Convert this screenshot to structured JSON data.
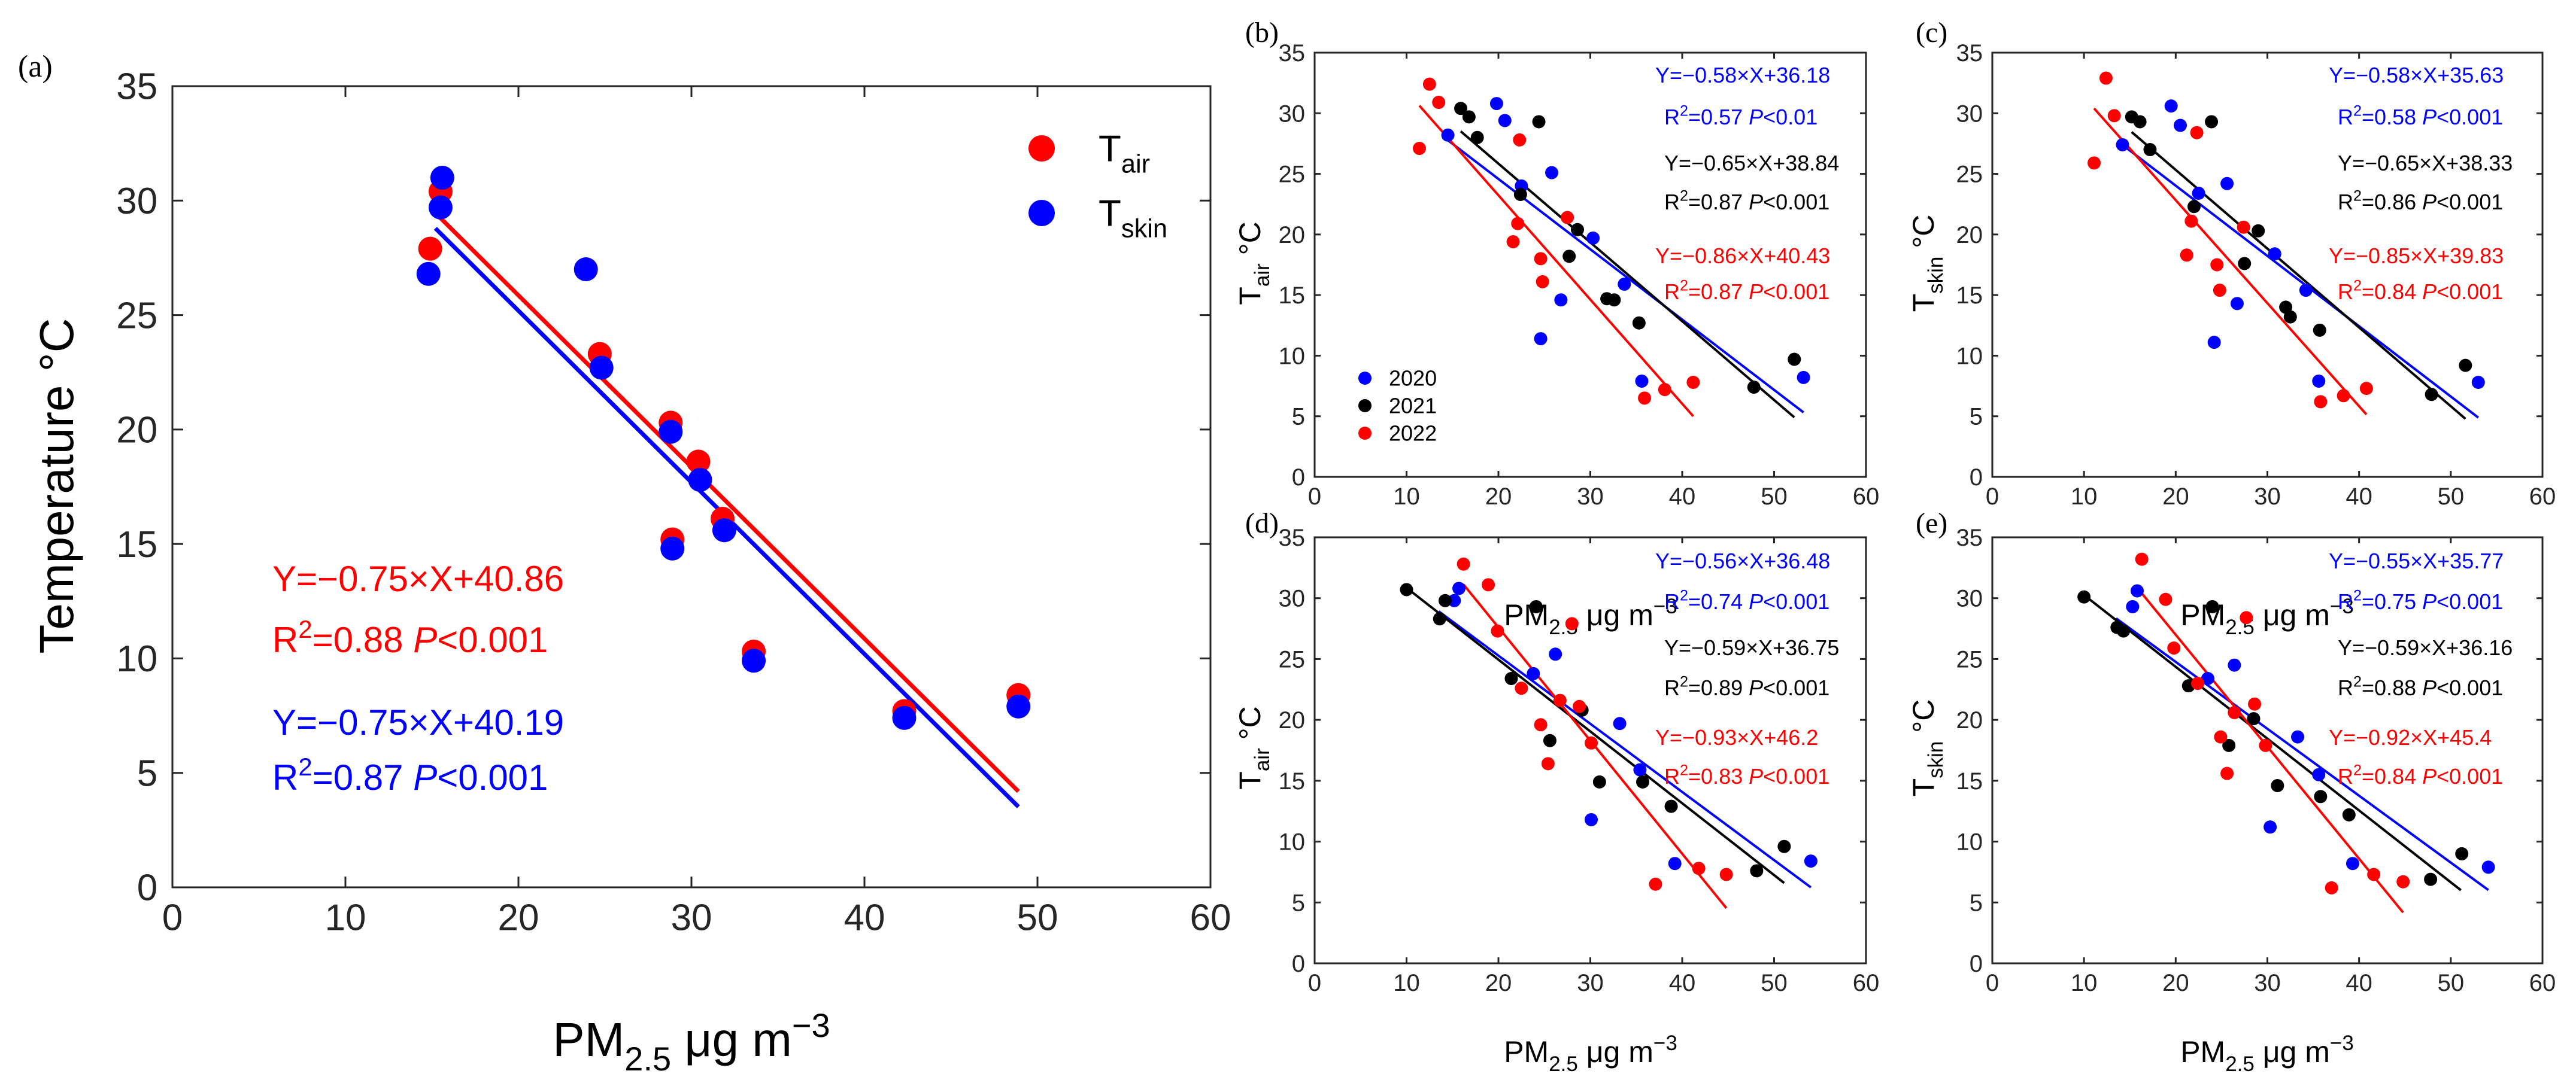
{
  "figure": {
    "colors": {
      "red": "#ff0000",
      "blue": "#0000ff",
      "black": "#000000"
    }
  },
  "chart_data": [
    {
      "panel": "(a)",
      "type": "scatter",
      "xlabel": {
        "main": "PM",
        "sub": "2.5",
        "unit": " μg m",
        "sup": "−3"
      },
      "ylabel": "Temperature °C",
      "xlim": [
        0,
        60
      ],
      "ylim": [
        0,
        35
      ],
      "xticks": [
        "0",
        "10",
        "20",
        "30",
        "40",
        "50",
        "60"
      ],
      "yticks": [
        "0",
        "5",
        "10",
        "15",
        "20",
        "25",
        "30",
        "35"
      ],
      "legend": [
        {
          "main": "T",
          "sub": "air",
          "color": "#ff0000"
        },
        {
          "main": "T",
          "sub": "skin",
          "color": "#0000ff"
        }
      ],
      "series": [
        {
          "name": "T_air",
          "color": "#ff0000",
          "x": [
            14.9,
            15.5,
            24.7,
            28.8,
            28.9,
            30.4,
            31.8,
            33.6,
            42.3,
            48.9
          ],
          "y": [
            27.9,
            30.4,
            23.3,
            20.3,
            15.2,
            18.6,
            16.1,
            10.3,
            7.7,
            8.4
          ]
        },
        {
          "name": "T_skin",
          "color": "#0000ff",
          "x": [
            14.8,
            15.5,
            15.6,
            23.9,
            24.8,
            28.8,
            28.9,
            30.5,
            31.9,
            33.6,
            42.3,
            48.9
          ],
          "y": [
            26.8,
            29.7,
            31.0,
            27.0,
            22.7,
            19.9,
            14.8,
            17.8,
            15.6,
            9.9,
            7.4,
            7.9
          ]
        }
      ],
      "fits": [
        {
          "color": "#ff0000",
          "x": [
            15.2,
            48.9
          ],
          "y": [
            29.46,
            4.19
          ],
          "eq": "Y=−0.75×X+40.86",
          "r2": "0.88",
          "p": "<0.001"
        },
        {
          "color": "#0000ff",
          "x": [
            15.2,
            48.9
          ],
          "y": [
            28.79,
            3.52
          ],
          "eq": "Y=−0.75×X+40.19",
          "r2": "0.87",
          "p": "<0.001"
        }
      ],
      "annotations": [
        {
          "kind": "eq",
          "text": "Y=−0.75×X+40.86",
          "color": "#ff0000"
        },
        {
          "kind": "r2p",
          "r2": "0.88",
          "p": "<0.001",
          "color": "#ff0000"
        },
        {
          "kind": "eq",
          "text": "Y=−0.75×X+40.19",
          "color": "#0000ff"
        },
        {
          "kind": "r2p",
          "r2": "0.87",
          "p": "<0.001",
          "color": "#0000ff"
        }
      ]
    },
    {
      "panel": "(b)",
      "type": "scatter",
      "xlabel": {
        "main": "PM",
        "sub": "2.5",
        "unit": " μg m",
        "sup": "−3"
      },
      "ylabel": {
        "main": "T",
        "sub": "air",
        "unit": " °C"
      },
      "xlim": [
        0,
        60
      ],
      "ylim": [
        0,
        35
      ],
      "xticks": [
        "0",
        "10",
        "20",
        "30",
        "40",
        "50",
        "60"
      ],
      "yticks": [
        "0",
        "5",
        "10",
        "15",
        "20",
        "25",
        "30",
        "35"
      ],
      "legend": [
        {
          "label": "2020",
          "color": "#0000ff"
        },
        {
          "label": "2021",
          "color": "#000000"
        },
        {
          "label": "2022",
          "color": "#ff0000"
        }
      ],
      "series": [
        {
          "name": "2020",
          "color": "#0000ff",
          "x": [
            14.5,
            19.8,
            20.7,
            22.5,
            24.6,
            25.8,
            26.8,
            30.3,
            33.7,
            35.6,
            53.2
          ],
          "y": [
            28.2,
            30.8,
            29.4,
            24.0,
            11.4,
            25.1,
            14.6,
            19.7,
            15.9,
            7.9,
            8.2
          ]
        },
        {
          "name": "2021",
          "color": "#000000",
          "x": [
            15.9,
            16.8,
            17.7,
            22.4,
            24.4,
            27.7,
            28.6,
            31.8,
            32.6,
            35.3,
            47.8,
            52.2
          ],
          "y": [
            30.4,
            29.7,
            28.0,
            23.3,
            29.3,
            18.2,
            20.4,
            14.7,
            14.6,
            12.7,
            7.4,
            9.7
          ]
        },
        {
          "name": "2022",
          "color": "#ff0000",
          "x": [
            11.4,
            12.5,
            13.5,
            21.6,
            22.1,
            22.3,
            24.6,
            24.8,
            27.5,
            35.9,
            38.1,
            41.2
          ],
          "y": [
            27.1,
            32.4,
            30.9,
            19.4,
            20.9,
            27.8,
            18.0,
            16.1,
            21.4,
            6.5,
            7.2,
            7.8
          ]
        }
      ],
      "fits": [
        {
          "color": "#0000ff",
          "x": [
            14.5,
            53.2
          ],
          "y": [
            27.77,
            5.32
          ]
        },
        {
          "color": "#000000",
          "x": [
            15.9,
            52.2
          ],
          "y": [
            28.51,
            4.91
          ]
        },
        {
          "color": "#ff0000",
          "x": [
            11.4,
            41.2
          ],
          "y": [
            30.63,
            5.0
          ]
        }
      ],
      "annotations": [
        {
          "kind": "eq",
          "text": "Y=−0.58×X+36.18",
          "color": "#0000ff"
        },
        {
          "kind": "r2p",
          "r2": "0.57",
          "p": "<0.01",
          "color": "#0000ff"
        },
        {
          "kind": "eq",
          "text": "Y=−0.65×X+38.84",
          "color": "#000000"
        },
        {
          "kind": "r2p",
          "r2": "0.87",
          "p": "<0.001",
          "color": "#000000"
        },
        {
          "kind": "eq",
          "text": "Y=−0.86×X+40.43",
          "color": "#ff0000"
        },
        {
          "kind": "r2p",
          "r2": "0.87",
          "p": "<0.001",
          "color": "#ff0000"
        }
      ]
    },
    {
      "panel": "(c)",
      "type": "scatter",
      "xlabel": {
        "main": "PM",
        "sub": "2.5",
        "unit": " μg m",
        "sup": "−3"
      },
      "ylabel": {
        "main": "T",
        "sub": "skin",
        "unit": " °C"
      },
      "xlim": [
        0,
        60
      ],
      "ylim": [
        0,
        35
      ],
      "xticks": [
        "0",
        "10",
        "20",
        "30",
        "40",
        "50",
        "60"
      ],
      "yticks": [
        "0",
        "5",
        "10",
        "15",
        "20",
        "25",
        "30",
        "35"
      ],
      "legend": [],
      "series": [
        {
          "name": "2020",
          "color": "#0000ff",
          "x": [
            14.2,
            19.5,
            20.5,
            22.5,
            24.2,
            25.6,
            26.7,
            30.8,
            34.2,
            35.6,
            53.0
          ],
          "y": [
            27.4,
            30.6,
            29.0,
            23.4,
            11.1,
            24.2,
            14.3,
            18.4,
            15.4,
            7.9,
            7.8
          ]
        },
        {
          "name": "2021",
          "color": "#000000",
          "x": [
            15.2,
            16.1,
            17.2,
            22.0,
            23.9,
            27.5,
            29.0,
            32.0,
            32.5,
            35.7,
            47.9,
            51.6
          ],
          "y": [
            29.7,
            29.3,
            27.0,
            22.3,
            29.3,
            17.6,
            20.3,
            14.0,
            13.2,
            12.1,
            6.8,
            9.2
          ]
        },
        {
          "name": "2022",
          "color": "#ff0000",
          "x": [
            11.1,
            12.4,
            13.3,
            21.2,
            21.7,
            22.3,
            24.5,
            24.8,
            27.4,
            35.8,
            38.3,
            40.8
          ],
          "y": [
            25.9,
            32.9,
            29.8,
            18.3,
            21.1,
            28.4,
            17.5,
            15.4,
            20.6,
            6.2,
            6.7,
            7.3
          ]
        }
      ],
      "fits": [
        {
          "color": "#0000ff",
          "x": [
            14.2,
            53.0
          ],
          "y": [
            27.39,
            4.89
          ]
        },
        {
          "color": "#000000",
          "x": [
            15.2,
            51.6
          ],
          "y": [
            28.45,
            4.79
          ]
        },
        {
          "color": "#ff0000",
          "x": [
            11.1,
            40.8
          ],
          "y": [
            30.4,
            5.15
          ]
        }
      ],
      "annotations": [
        {
          "kind": "eq",
          "text": "Y=−0.58×X+35.63",
          "color": "#0000ff"
        },
        {
          "kind": "r2p",
          "r2": "0.58",
          "p": "<0.001",
          "color": "#0000ff"
        },
        {
          "kind": "eq",
          "text": "Y=−0.65×X+38.33",
          "color": "#000000"
        },
        {
          "kind": "r2p",
          "r2": "0.86",
          "p": "<0.001",
          "color": "#000000"
        },
        {
          "kind": "eq",
          "text": "Y=−0.85×X+39.83",
          "color": "#ff0000"
        },
        {
          "kind": "r2p",
          "r2": "0.84",
          "p": "<0.001",
          "color": "#ff0000"
        }
      ]
    },
    {
      "panel": "(d)",
      "type": "scatter",
      "xlabel": {
        "main": "PM",
        "sub": "2.5",
        "unit": " μg m",
        "sup": "−3"
      },
      "ylabel": {
        "main": "T",
        "sub": "air",
        "unit": " °C"
      },
      "xlim": [
        0,
        60
      ],
      "ylim": [
        0,
        35
      ],
      "xticks": [
        "0",
        "10",
        "20",
        "30",
        "40",
        "50",
        "60"
      ],
      "yticks": [
        "0",
        "5",
        "10",
        "15",
        "20",
        "25",
        "30",
        "35"
      ],
      "legend": [],
      "series": [
        {
          "name": "2020",
          "color": "#0000ff",
          "x": [
            15.2,
            15.7,
            23.8,
            26.2,
            30.1,
            33.2,
            35.4,
            39.2,
            54.0
          ],
          "y": [
            29.8,
            30.8,
            23.8,
            25.4,
            11.8,
            19.7,
            15.9,
            8.2,
            8.4
          ]
        },
        {
          "name": "2021",
          "color": "#000000",
          "x": [
            10.0,
            13.6,
            14.2,
            21.4,
            24.1,
            25.6,
            29.1,
            31.0,
            35.7,
            38.8,
            48.1,
            51.1
          ],
          "y": [
            30.7,
            28.3,
            29.8,
            23.4,
            29.3,
            18.3,
            20.8,
            14.9,
            14.9,
            12.9,
            7.6,
            9.6
          ]
        },
        {
          "name": "2022",
          "color": "#ff0000",
          "x": [
            16.2,
            18.9,
            19.9,
            22.5,
            24.6,
            25.4,
            26.7,
            28.0,
            28.8,
            30.1,
            37.1,
            41.8,
            44.8
          ],
          "y": [
            32.8,
            31.1,
            27.3,
            22.6,
            19.6,
            16.4,
            21.6,
            27.9,
            21.1,
            18.1,
            6.5,
            7.8,
            7.3
          ]
        }
      ],
      "fits": [
        {
          "color": "#0000ff",
          "x": [
            13.5,
            54.0
          ],
          "y": [
            28.92,
            6.24
          ]
        },
        {
          "color": "#000000",
          "x": [
            10.0,
            51.1
          ],
          "y": [
            30.85,
            6.6
          ]
        },
        {
          "color": "#ff0000",
          "x": [
            16.2,
            44.8
          ],
          "y": [
            31.13,
            4.54
          ]
        }
      ],
      "annotations": [
        {
          "kind": "eq",
          "text": "Y=−0.56×X+36.48",
          "color": "#0000ff"
        },
        {
          "kind": "r2p",
          "r2": "0.74",
          "p": "<0.001",
          "color": "#0000ff"
        },
        {
          "kind": "eq",
          "text": "Y=−0.59×X+36.75",
          "color": "#000000"
        },
        {
          "kind": "r2p",
          "r2": "0.89",
          "p": "<0.001",
          "color": "#000000"
        },
        {
          "kind": "eq",
          "text": "Y=−0.93×X+46.2",
          "color": "#ff0000"
        },
        {
          "kind": "r2p",
          "r2": "0.83",
          "p": "<0.001",
          "color": "#ff0000"
        }
      ]
    },
    {
      "panel": "(e)",
      "type": "scatter",
      "xlabel": {
        "main": "PM",
        "sub": "2.5",
        "unit": " μg m",
        "sup": "−3"
      },
      "ylabel": {
        "main": "T",
        "sub": "skin",
        "unit": " °C"
      },
      "xlim": [
        0,
        60
      ],
      "ylim": [
        0,
        35
      ],
      "xticks": [
        "0",
        "10",
        "20",
        "30",
        "40",
        "50",
        "60"
      ],
      "yticks": [
        "0",
        "5",
        "10",
        "15",
        "20",
        "25",
        "30",
        "35"
      ],
      "legend": [],
      "series": [
        {
          "name": "2020",
          "color": "#0000ff",
          "x": [
            15.3,
            15.8,
            23.5,
            26.4,
            30.3,
            33.3,
            35.6,
            39.3,
            54.1
          ],
          "y": [
            29.3,
            30.6,
            23.4,
            24.5,
            11.2,
            18.6,
            15.5,
            8.2,
            7.9
          ]
        },
        {
          "name": "2021",
          "color": "#000000",
          "x": [
            10.0,
            13.6,
            14.3,
            21.4,
            24.0,
            25.8,
            28.5,
            31.1,
            35.8,
            38.9,
            47.8,
            51.2
          ],
          "y": [
            30.1,
            27.6,
            27.3,
            22.8,
            29.3,
            17.9,
            20.1,
            14.6,
            13.7,
            12.2,
            6.9,
            9.0
          ]
        },
        {
          "name": "2022",
          "color": "#ff0000",
          "x": [
            16.3,
            18.9,
            19.8,
            22.4,
            24.9,
            25.6,
            26.4,
            27.7,
            28.6,
            29.8,
            37.0,
            41.6,
            44.8
          ],
          "y": [
            33.2,
            29.9,
            25.9,
            23.0,
            18.6,
            15.6,
            20.6,
            28.4,
            21.3,
            17.9,
            6.2,
            7.3,
            6.7
          ]
        }
      ],
      "fits": [
        {
          "color": "#0000ff",
          "x": [
            13.5,
            54.1
          ],
          "y": [
            28.34,
            6.02
          ]
        },
        {
          "color": "#000000",
          "x": [
            10.0,
            51.1
          ],
          "y": [
            30.26,
            6.01
          ]
        },
        {
          "color": "#ff0000",
          "x": [
            16.3,
            44.8
          ],
          "y": [
            30.4,
            4.18
          ]
        }
      ],
      "annotations": [
        {
          "kind": "eq",
          "text": "Y=−0.55×X+35.77",
          "color": "#0000ff"
        },
        {
          "kind": "r2p",
          "r2": "0.75",
          "p": "<0.001",
          "color": "#0000ff"
        },
        {
          "kind": "eq",
          "text": "Y=−0.59×X+36.16",
          "color": "#000000"
        },
        {
          "kind": "r2p",
          "r2": "0.88",
          "p": "<0.001",
          "color": "#000000"
        },
        {
          "kind": "eq",
          "text": "Y=−0.92×X+45.4",
          "color": "#ff0000"
        },
        {
          "kind": "r2p",
          "r2": "0.84",
          "p": "<0.001",
          "color": "#ff0000"
        }
      ]
    }
  ]
}
